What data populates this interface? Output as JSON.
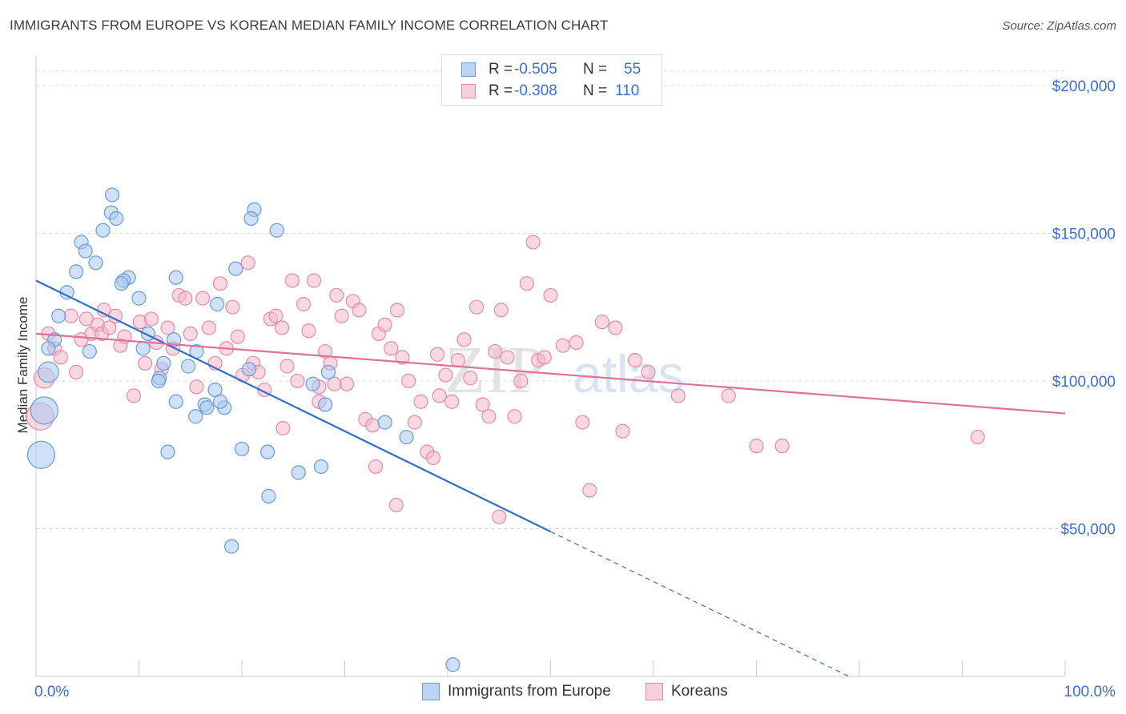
{
  "title": "IMMIGRANTS FROM EUROPE VS KOREAN MEDIAN FAMILY INCOME CORRELATION CHART",
  "source": "Source: ZipAtlas.com",
  "watermark": {
    "zip": "ZIP",
    "atlas": "atlas"
  },
  "colors": {
    "europe_fill": "#a8c8f0",
    "europe_stroke": "#6a9ad8",
    "europe_line": "#2f6fd1",
    "korean_fill": "#f5b8cb",
    "korean_stroke": "#e88aa8",
    "korean_line": "#e0709a",
    "axis_text": "#3b6fd4",
    "grid": "#dcdcdc"
  },
  "legend": {
    "rows": [
      {
        "r_label": "R =",
        "r_value": "-0.505",
        "n_label": "N =",
        "n_value": "55"
      },
      {
        "r_label": "R =",
        "r_value": "-0.308",
        "n_label": "N =",
        "n_value": "110"
      }
    ]
  },
  "bottom_legend": {
    "europe": "Immigrants from Europe",
    "korean": "Koreans"
  },
  "chart_data": {
    "type": "scatter",
    "xlabel": "",
    "ylabel": "Median Family Income",
    "xlim": [
      0,
      100
    ],
    "ylim": [
      0,
      210000
    ],
    "x_tick_labels": [
      "0.0%",
      "100.0%"
    ],
    "y_ticks": [
      50000,
      100000,
      150000,
      200000
    ],
    "y_tick_labels": [
      "$50,000",
      "$100,000",
      "$150,000",
      "$200,000"
    ],
    "grid": "horizontal dashed",
    "legend_position": "top-center",
    "series": [
      {
        "name": "Immigrants from Europe",
        "r": -0.505,
        "n": 55,
        "trend": {
          "x0": 0,
          "y0": 134000,
          "x1": 50,
          "y1": 49000,
          "dashed_to_x": 79,
          "dashed_to_y": 0
        },
        "points": [
          [
            7.4,
            163000
          ],
          [
            7.3,
            157000
          ],
          [
            7.8,
            155000
          ],
          [
            6.5,
            151000
          ],
          [
            4.4,
            147000
          ],
          [
            4.8,
            144000
          ],
          [
            5.8,
            140000
          ],
          [
            3.9,
            137000
          ],
          [
            9.0,
            135000
          ],
          [
            8.5,
            134000
          ],
          [
            8.3,
            133000
          ],
          [
            13.6,
            135000
          ],
          [
            3.0,
            130000
          ],
          [
            10.0,
            128000
          ],
          [
            17.6,
            126000
          ],
          [
            19.4,
            138000
          ],
          [
            21.2,
            158000
          ],
          [
            20.9,
            155000
          ],
          [
            23.4,
            151000
          ],
          [
            2.2,
            122000
          ],
          [
            1.8,
            114000
          ],
          [
            1.2,
            111000
          ],
          [
            5.2,
            110000
          ],
          [
            10.9,
            116000
          ],
          [
            13.4,
            114000
          ],
          [
            10.4,
            111000
          ],
          [
            15.6,
            110000
          ],
          [
            12.4,
            106000
          ],
          [
            14.8,
            105000
          ],
          [
            12.0,
            101000
          ],
          [
            11.9,
            100000
          ],
          [
            20.7,
            104000
          ],
          [
            28.4,
            103000
          ],
          [
            26.9,
            99000
          ],
          [
            17.4,
            97000
          ],
          [
            13.6,
            93000
          ],
          [
            16.4,
            92000
          ],
          [
            18.3,
            91000
          ],
          [
            17.9,
            93000
          ],
          [
            16.6,
            91000
          ],
          [
            15.5,
            88000
          ],
          [
            28.1,
            92000
          ],
          [
            1.2,
            103000
          ],
          [
            0.8,
            90000
          ],
          [
            0.5,
            75000
          ],
          [
            12.8,
            76000
          ],
          [
            20.0,
            77000
          ],
          [
            22.5,
            76000
          ],
          [
            25.5,
            69000
          ],
          [
            27.7,
            71000
          ],
          [
            33.9,
            86000
          ],
          [
            36.0,
            81000
          ],
          [
            22.6,
            61000
          ],
          [
            19.0,
            44000
          ],
          [
            40.5,
            4000
          ]
        ],
        "sizes": [
          1,
          1,
          1,
          1,
          1,
          1,
          1,
          1,
          1,
          1,
          1,
          1,
          1,
          1,
          1,
          1,
          1,
          1,
          1,
          1,
          1,
          1,
          1,
          1,
          1,
          1,
          1,
          1,
          1,
          1,
          1,
          1,
          1,
          1,
          1,
          1,
          1,
          1,
          1,
          1,
          1,
          1,
          1.5,
          2,
          2,
          1,
          1,
          1,
          1,
          1,
          1,
          1,
          1,
          1,
          1
        ]
      },
      {
        "name": "Koreans",
        "r": -0.308,
        "n": 110,
        "trend": {
          "x0": 0,
          "y0": 116000,
          "x1": 100,
          "y1": 89000
        },
        "points": [
          [
            1.2,
            116000
          ],
          [
            1.8,
            111000
          ],
          [
            2.4,
            108000
          ],
          [
            3.4,
            122000
          ],
          [
            3.9,
            103000
          ],
          [
            4.4,
            114000
          ],
          [
            4.9,
            121000
          ],
          [
            5.4,
            116000
          ],
          [
            6.0,
            119000
          ],
          [
            6.6,
            124000
          ],
          [
            6.4,
            116000
          ],
          [
            7.1,
            118000
          ],
          [
            7.7,
            122000
          ],
          [
            8.2,
            112000
          ],
          [
            8.6,
            115000
          ],
          [
            9.5,
            95000
          ],
          [
            10.1,
            120000
          ],
          [
            10.6,
            106000
          ],
          [
            11.2,
            121000
          ],
          [
            11.7,
            113000
          ],
          [
            12.2,
            104000
          ],
          [
            12.8,
            118000
          ],
          [
            13.3,
            111000
          ],
          [
            13.9,
            129000
          ],
          [
            14.5,
            128000
          ],
          [
            15.0,
            116000
          ],
          [
            15.6,
            98000
          ],
          [
            16.2,
            128000
          ],
          [
            16.8,
            118000
          ],
          [
            17.4,
            106000
          ],
          [
            17.9,
            133000
          ],
          [
            18.5,
            111000
          ],
          [
            19.1,
            125000
          ],
          [
            19.6,
            115000
          ],
          [
            20.1,
            102000
          ],
          [
            20.6,
            140000
          ],
          [
            21.1,
            106000
          ],
          [
            21.6,
            103000
          ],
          [
            22.2,
            97000
          ],
          [
            22.8,
            121000
          ],
          [
            23.3,
            122000
          ],
          [
            23.9,
            118000
          ],
          [
            24.4,
            105000
          ],
          [
            24.9,
            134000
          ],
          [
            25.4,
            100000
          ],
          [
            26.0,
            126000
          ],
          [
            26.5,
            117000
          ],
          [
            27.0,
            134000
          ],
          [
            27.5,
            98000
          ],
          [
            28.1,
            110000
          ],
          [
            28.6,
            106000
          ],
          [
            29.2,
            129000
          ],
          [
            29.7,
            122000
          ],
          [
            30.2,
            99000
          ],
          [
            30.8,
            127000
          ],
          [
            31.4,
            124000
          ],
          [
            32.0,
            87000
          ],
          [
            32.7,
            85000
          ],
          [
            33.3,
            116000
          ],
          [
            33.9,
            119000
          ],
          [
            34.5,
            111000
          ],
          [
            35.1,
            124000
          ],
          [
            35.6,
            108000
          ],
          [
            36.2,
            100000
          ],
          [
            36.8,
            86000
          ],
          [
            37.4,
            93000
          ],
          [
            38.0,
            76000
          ],
          [
            38.6,
            74000
          ],
          [
            39.2,
            95000
          ],
          [
            39.8,
            102000
          ],
          [
            40.4,
            93000
          ],
          [
            41.0,
            107000
          ],
          [
            41.6,
            114000
          ],
          [
            42.2,
            101000
          ],
          [
            42.8,
            125000
          ],
          [
            43.4,
            92000
          ],
          [
            44.0,
            88000
          ],
          [
            44.6,
            110000
          ],
          [
            45.2,
            124000
          ],
          [
            45.8,
            108000
          ],
          [
            46.5,
            88000
          ],
          [
            47.1,
            100000
          ],
          [
            47.7,
            133000
          ],
          [
            48.3,
            147000
          ],
          [
            48.8,
            107000
          ],
          [
            49.4,
            108000
          ],
          [
            50.0,
            129000
          ],
          [
            51.2,
            112000
          ],
          [
            52.5,
            113000
          ],
          [
            53.1,
            86000
          ],
          [
            53.8,
            63000
          ],
          [
            55.0,
            120000
          ],
          [
            56.3,
            118000
          ],
          [
            57.0,
            83000
          ],
          [
            58.2,
            107000
          ],
          [
            59.5,
            103000
          ],
          [
            62.4,
            95000
          ],
          [
            67.3,
            95000
          ],
          [
            70.0,
            78000
          ],
          [
            72.5,
            78000
          ],
          [
            91.5,
            81000
          ],
          [
            35.0,
            58000
          ],
          [
            45.0,
            54000
          ],
          [
            33.0,
            71000
          ],
          [
            0.8,
            101000
          ],
          [
            0.4,
            88000
          ],
          [
            24.0,
            84000
          ],
          [
            27.5,
            93000
          ],
          [
            29.0,
            99000
          ],
          [
            39.0,
            109000
          ]
        ],
        "sizes": [
          1,
          1,
          1,
          1,
          1,
          1,
          1,
          1,
          1,
          1,
          1,
          1,
          1,
          1,
          1,
          1,
          1,
          1,
          1,
          1,
          1,
          1,
          1,
          1,
          1,
          1,
          1,
          1,
          1,
          1,
          1,
          1,
          1,
          1,
          1,
          1,
          1,
          1,
          1,
          1,
          1,
          1,
          1,
          1,
          1,
          1,
          1,
          1,
          1,
          1,
          1,
          1,
          1,
          1,
          1,
          1,
          1,
          1,
          1,
          1,
          1,
          1,
          1,
          1,
          1,
          1,
          1,
          1,
          1,
          1,
          1,
          1,
          1,
          1,
          1,
          1,
          1,
          1,
          1,
          1,
          1,
          1,
          1,
          1,
          1,
          1,
          1,
          1,
          1,
          1,
          1,
          1,
          1,
          1,
          1,
          1,
          1,
          1,
          1,
          1,
          1,
          1,
          1,
          1,
          1.5,
          2,
          1,
          1,
          1,
          1
        ]
      }
    ]
  }
}
